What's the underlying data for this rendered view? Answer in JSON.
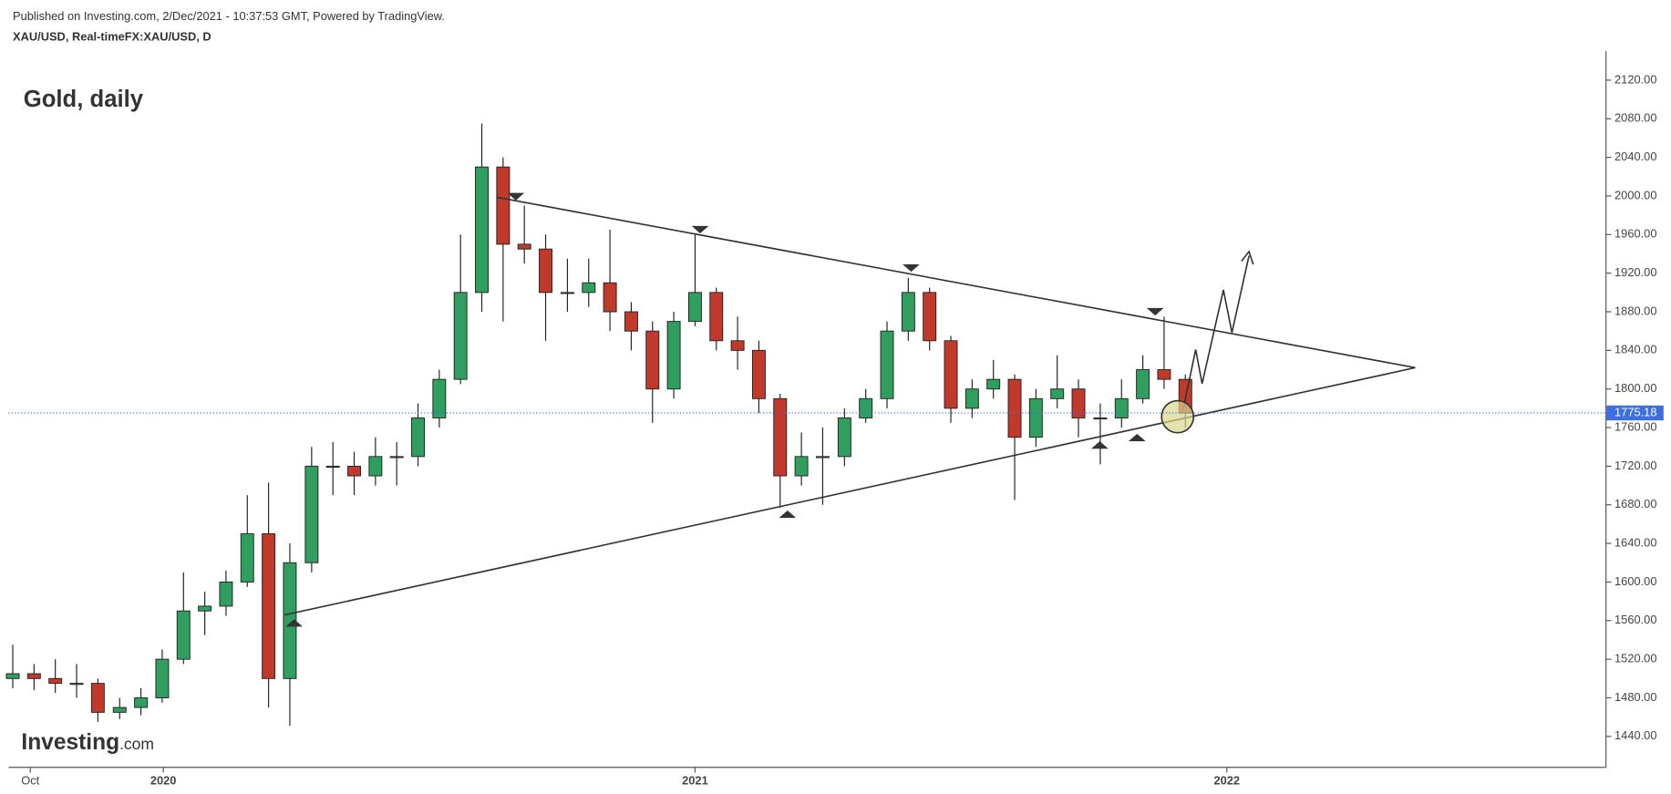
{
  "chart_data": {
    "type": "candlestick",
    "source": "Published on Investing.com, 2/Dec/2021 - 10:37:53 GMT, Powered by TradingView.",
    "symbol": "XAU/USD, Real-timeFX:XAU/USD, D",
    "title": "Gold, daily",
    "logo": "Investing",
    "logo_suffix": ".com",
    "x": [
      2019.717,
      2019.757,
      2019.797,
      2019.837,
      2019.877,
      2019.918,
      2019.958,
      2019.998,
      2020.038,
      2020.078,
      2020.118,
      2020.158,
      2020.198,
      2020.238,
      2020.279,
      2020.319,
      2020.359,
      2020.399,
      2020.439,
      2020.479,
      2020.519,
      2020.559,
      2020.599,
      2020.639,
      2020.679,
      2020.719,
      2020.76,
      2020.8,
      2020.84,
      2020.88,
      2020.92,
      2020.96,
      2021.0,
      2021.04,
      2021.08,
      2021.12,
      2021.16,
      2021.2,
      2021.24,
      2021.281,
      2021.321,
      2021.361,
      2021.401,
      2021.441,
      2021.481,
      2021.521,
      2021.561,
      2021.601,
      2021.641,
      2021.681,
      2021.721,
      2021.762,
      2021.802,
      2021.842,
      2021.882,
      2021.922
    ],
    "open": [
      1500,
      1505,
      1500,
      1495,
      1495,
      1465,
      1470,
      1480,
      1520,
      1570,
      1575,
      1600,
      1650,
      1500,
      1620,
      1720,
      1720,
      1710,
      1730,
      1730,
      1770,
      1810,
      1900,
      2030,
      1950,
      1945,
      1900,
      1900,
      1910,
      1880,
      1860,
      1800,
      1870,
      1900,
      1850,
      1840,
      1790,
      1710,
      1730,
      1730,
      1770,
      1790,
      1860,
      1900,
      1850,
      1780,
      1800,
      1810,
      1750,
      1790,
      1800,
      1770,
      1770,
      1790,
      1820,
      1810
    ],
    "high": [
      1535,
      1515,
      1520,
      1515,
      1500,
      1480,
      1490,
      1530,
      1610,
      1590,
      1612,
      1690,
      1703,
      1640,
      1740,
      1745,
      1735,
      1750,
      1745,
      1785,
      1820,
      1960,
      2075,
      2040,
      1990,
      1960,
      1935,
      1935,
      1965,
      1890,
      1870,
      1880,
      1960,
      1905,
      1875,
      1850,
      1795,
      1755,
      1760,
      1780,
      1800,
      1870,
      1915,
      1905,
      1855,
      1810,
      1830,
      1815,
      1800,
      1835,
      1810,
      1785,
      1810,
      1835,
      1875,
      1815
    ],
    "low": [
      1490,
      1488,
      1485,
      1480,
      1455,
      1458,
      1462,
      1475,
      1515,
      1545,
      1565,
      1595,
      1470,
      1451,
      1610,
      1690,
      1690,
      1700,
      1700,
      1720,
      1760,
      1805,
      1880,
      1870,
      1930,
      1850,
      1880,
      1885,
      1860,
      1840,
      1765,
      1790,
      1865,
      1840,
      1820,
      1775,
      1677,
      1700,
      1680,
      1720,
      1765,
      1780,
      1850,
      1840,
      1765,
      1770,
      1790,
      1685,
      1740,
      1780,
      1750,
      1722,
      1760,
      1785,
      1800,
      1760
    ],
    "close": [
      1505,
      1500,
      1495,
      1495,
      1465,
      1470,
      1480,
      1520,
      1570,
      1575,
      1600,
      1650,
      1500,
      1620,
      1720,
      1720,
      1710,
      1730,
      1730,
      1770,
      1810,
      1900,
      2030,
      1950,
      1945,
      1900,
      1900,
      1910,
      1880,
      1860,
      1800,
      1870,
      1900,
      1850,
      1840,
      1790,
      1710,
      1730,
      1730,
      1770,
      1790,
      1860,
      1900,
      1850,
      1780,
      1800,
      1810,
      1750,
      1790,
      1800,
      1770,
      1770,
      1790,
      1820,
      1810,
      1775
    ],
    "up_color": "#2f9e5e",
    "down_color": "#c0392b",
    "last_price": 1775.18,
    "last_price_color": "#3d6fe0",
    "xlim": [
      2019.709,
      2022.713
    ],
    "xticks": [
      {
        "value": 2019.75,
        "label": "Oct"
      },
      {
        "value": 2020,
        "label": "2020"
      },
      {
        "value": 2021,
        "label": "2021"
      },
      {
        "value": 2022,
        "label": "2022"
      }
    ],
    "ylim": [
      1408,
      2150
    ],
    "yticks": [
      {
        "value": 1440,
        "label": "1440.00"
      },
      {
        "value": 1480,
        "label": "1480.00"
      },
      {
        "value": 1520,
        "label": "1520.00"
      },
      {
        "value": 1560,
        "label": "1560.00"
      },
      {
        "value": 1600,
        "label": "1600.00"
      },
      {
        "value": 1640,
        "label": "1640.00"
      },
      {
        "value": 1680,
        "label": "1680.00"
      },
      {
        "value": 1720,
        "label": "1720.00"
      },
      {
        "value": 1760,
        "label": "1760.00"
      },
      {
        "value": 1800,
        "label": "1800.00"
      },
      {
        "value": 1840,
        "label": "1840.00"
      },
      {
        "value": 1880,
        "label": "1880.00"
      },
      {
        "value": 1920,
        "label": "1920.00"
      },
      {
        "value": 1960,
        "label": "1960.00"
      },
      {
        "value": 2000,
        "label": "2000.00"
      },
      {
        "value": 2040,
        "label": "2040.00"
      },
      {
        "value": 2080,
        "label": "2080.00"
      },
      {
        "value": 2120,
        "label": "2120.00"
      }
    ]
  }
}
